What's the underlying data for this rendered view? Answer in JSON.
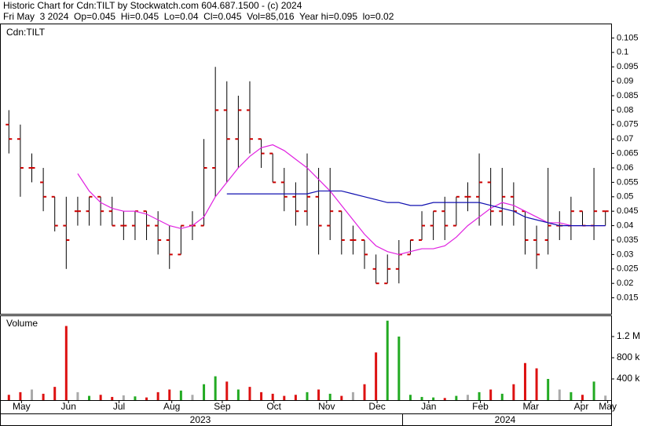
{
  "chart_data": {
    "type": "ohlc",
    "title": "Historic Chart for Cdn:TILT by Stockwatch.com 604.687.1500 - (c) 2024",
    "subtitle": "Fri May  3 2024  Op=0.045  Hi=0.045  Lo=0.04  Cl=0.045  Vol=85,016  Year hi=0.095  lo=0.02",
    "symbol": "Cdn:TILT",
    "bar_color": "#000000",
    "tick_color": "#cc0000",
    "grid": false,
    "xlim": [
      -0.5,
      52.5
    ],
    "xticks": [
      {
        "value": 1.1,
        "label": "May"
      },
      {
        "value": 5.2,
        "label": "Jun"
      },
      {
        "value": 9.6,
        "label": "Jul"
      },
      {
        "value": 14.2,
        "label": "Aug"
      },
      {
        "value": 18.6,
        "label": "Sep"
      },
      {
        "value": 23.1,
        "label": "Oct"
      },
      {
        "value": 27.7,
        "label": "Nov"
      },
      {
        "value": 32.1,
        "label": "Dec"
      },
      {
        "value": 36.6,
        "label": "Jan"
      },
      {
        "value": 41.1,
        "label": "Feb"
      },
      {
        "value": 45.5,
        "label": "Mar"
      },
      {
        "value": 49.9,
        "label": "Apr"
      },
      {
        "value": 52.2,
        "label": "May"
      }
    ],
    "years": [
      "2023",
      "2024"
    ],
    "ylim": [
      0.01,
      0.11
    ],
    "yticks": [
      0.015,
      0.02,
      0.025,
      0.03,
      0.035,
      0.04,
      0.045,
      0.05,
      0.055,
      0.06,
      0.065,
      0.07,
      0.075,
      0.08,
      0.085,
      0.09,
      0.095,
      0.1,
      0.105
    ],
    "open": [
      0.075,
      0.07,
      0.06,
      0.055,
      0.05,
      0.04,
      0.045,
      0.045,
      0.05,
      0.045,
      0.04,
      0.04,
      0.045,
      0.04,
      0.035,
      0.03,
      0.04,
      0.04,
      0.06,
      0.08,
      0.07,
      0.08,
      0.07,
      0.065,
      0.055,
      0.05,
      0.045,
      0.05,
      0.04,
      0.045,
      0.035,
      0.035,
      0.025,
      0.02,
      0.025,
      0.03,
      0.035,
      0.04,
      0.045,
      0.04,
      0.05,
      0.05,
      0.055,
      0.045,
      0.05,
      0.045,
      0.035,
      0.035,
      0.04,
      0.04,
      0.045,
      0.04,
      0.045
    ],
    "high": [
      0.08,
      0.075,
      0.065,
      0.06,
      0.05,
      0.05,
      0.05,
      0.05,
      0.05,
      0.05,
      0.045,
      0.045,
      0.045,
      0.045,
      0.04,
      0.04,
      0.045,
      0.07,
      0.095,
      0.09,
      0.085,
      0.09,
      0.07,
      0.065,
      0.06,
      0.055,
      0.065,
      0.06,
      0.06,
      0.045,
      0.04,
      0.035,
      0.03,
      0.03,
      0.035,
      0.035,
      0.045,
      0.045,
      0.05,
      0.05,
      0.055,
      0.065,
      0.06,
      0.06,
      0.055,
      0.045,
      0.04,
      0.06,
      0.045,
      0.05,
      0.045,
      0.06,
      0.045
    ],
    "low": [
      0.065,
      0.05,
      0.055,
      0.045,
      0.038,
      0.025,
      0.04,
      0.04,
      0.04,
      0.04,
      0.035,
      0.035,
      0.035,
      0.03,
      0.025,
      0.03,
      0.035,
      0.04,
      0.05,
      0.055,
      0.06,
      0.065,
      0.06,
      0.055,
      0.045,
      0.04,
      0.04,
      0.03,
      0.035,
      0.03,
      0.03,
      0.025,
      0.02,
      0.02,
      0.02,
      0.03,
      0.035,
      0.035,
      0.035,
      0.04,
      0.045,
      0.04,
      0.04,
      0.04,
      0.04,
      0.03,
      0.025,
      0.03,
      0.035,
      0.035,
      0.04,
      0.035,
      0.04
    ],
    "close": [
      0.07,
      0.06,
      0.06,
      0.05,
      0.04,
      0.035,
      0.045,
      0.05,
      0.045,
      0.04,
      0.04,
      0.045,
      0.04,
      0.035,
      0.03,
      0.04,
      0.04,
      0.06,
      0.08,
      0.07,
      0.08,
      0.07,
      0.065,
      0.055,
      0.05,
      0.045,
      0.05,
      0.04,
      0.045,
      0.035,
      0.035,
      0.03,
      0.02,
      0.025,
      0.03,
      0.035,
      0.04,
      0.045,
      0.04,
      0.05,
      0.05,
      0.055,
      0.045,
      0.05,
      0.045,
      0.035,
      0.03,
      0.04,
      0.04,
      0.045,
      0.04,
      0.045,
      0.045
    ],
    "series": [
      {
        "color": "#e020e0",
        "values": [
          null,
          null,
          null,
          null,
          null,
          null,
          0.058,
          0.052,
          0.048,
          0.046,
          0.045,
          0.045,
          0.044,
          0.042,
          0.04,
          0.039,
          0.04,
          0.043,
          0.05,
          0.055,
          0.06,
          0.064,
          0.067,
          0.068,
          0.066,
          0.063,
          0.06,
          0.056,
          0.052,
          0.047,
          0.042,
          0.037,
          0.033,
          0.031,
          0.03,
          0.031,
          0.032,
          0.032,
          0.033,
          0.036,
          0.04,
          0.043,
          0.046,
          0.048,
          0.047,
          0.045,
          0.043,
          0.041,
          0.041,
          0.04,
          0.04,
          0.04,
          0.04
        ]
      },
      {
        "color": "#1010b0",
        "values": [
          null,
          null,
          null,
          null,
          null,
          null,
          null,
          null,
          null,
          null,
          null,
          null,
          null,
          null,
          null,
          null,
          null,
          null,
          null,
          0.051,
          0.051,
          0.051,
          0.051,
          0.051,
          0.051,
          0.051,
          0.051,
          0.052,
          0.052,
          0.052,
          0.051,
          0.05,
          0.049,
          0.048,
          0.048,
          0.047,
          0.047,
          0.048,
          0.048,
          0.048,
          0.048,
          0.048,
          0.047,
          0.046,
          0.045,
          0.043,
          0.042,
          0.041,
          0.04,
          0.04,
          0.04,
          0.04,
          0.04
        ]
      }
    ],
    "volume": {
      "label": "Volume",
      "ylim": [
        0,
        1600000
      ],
      "yticks": [
        {
          "value": 400000,
          "label": "400 k"
        },
        {
          "value": 800000,
          "label": "800 k"
        },
        {
          "value": 1200000,
          "label": "1.2 M"
        }
      ],
      "colors": {
        "up": "#22aa22",
        "down": "#dd1111",
        "flat": "#aaaaaa"
      },
      "values": [
        100000,
        150000,
        200000,
        120000,
        250000,
        1400000,
        150000,
        80000,
        100000,
        60000,
        90000,
        70000,
        50000,
        150000,
        200000,
        180000,
        100000,
        300000,
        450000,
        350000,
        200000,
        250000,
        150000,
        120000,
        80000,
        100000,
        150000,
        200000,
        120000,
        80000,
        150000,
        300000,
        900000,
        1500000,
        1200000,
        100000,
        60000,
        50000,
        40000,
        80000,
        100000,
        150000,
        200000,
        120000,
        300000,
        700000,
        600000,
        400000,
        200000,
        150000,
        100000,
        350000,
        85016
      ]
    }
  }
}
